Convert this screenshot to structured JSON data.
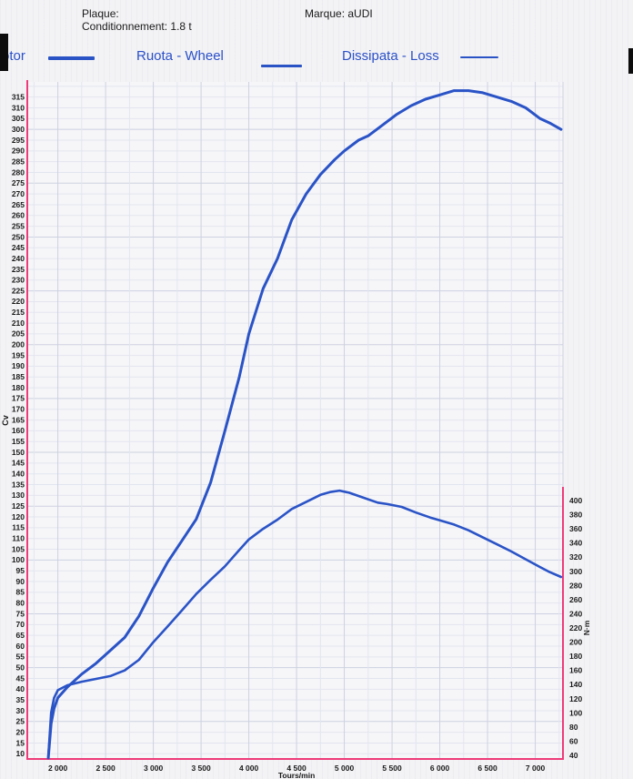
{
  "header": {
    "plaque": "Plaque:",
    "conditionnement": "Conditionnement: 1.8 t",
    "marque": "Marque: aUDI"
  },
  "legend": {
    "motor_label": "otor",
    "wheel_label": "Ruota - Wheel",
    "loss_label": "Dissipata - Loss"
  },
  "colors": {
    "curve_blue": "#2a53c6",
    "axis_magenta": "#ee3a78",
    "grid_minor": "#e3e5ef",
    "grid_major": "#cdd1e0",
    "legend_text": "#2b50c8",
    "text_black": "#1a1a1a",
    "paper": "#f6f6f9"
  },
  "chart_data": {
    "type": "line",
    "title": "",
    "x_axis": {
      "title": "Tours/min",
      "min": 1680,
      "max": 7290,
      "tick_values": [
        2000,
        2500,
        3000,
        3500,
        4000,
        4500,
        5000,
        5500,
        6000,
        6500,
        7000
      ],
      "tick_labels": [
        "2 000",
        "2 500",
        "3 000",
        "3 500",
        "4 000",
        "4 500",
        "5 000",
        "5 500",
        "6 000",
        "6 500",
        "7 000"
      ],
      "minor_step": 250
    },
    "left_axis": {
      "title": "Cv",
      "min": 10,
      "max": 315,
      "step": 5,
      "major_step": 25,
      "grid_top_value": 320
    },
    "right_axis": {
      "title": "N·m",
      "min": 40,
      "max": 400,
      "step": 20
    },
    "legend_position": "top",
    "grid": true,
    "series": [
      {
        "name": "power_cv",
        "axis": "left",
        "stroke_width": 3,
        "points": [
          [
            1900,
            8
          ],
          [
            1930,
            24
          ],
          [
            1960,
            31
          ],
          [
            2000,
            36
          ],
          [
            2100,
            41
          ],
          [
            2250,
            47
          ],
          [
            2400,
            52
          ],
          [
            2550,
            58
          ],
          [
            2700,
            64
          ],
          [
            2850,
            74
          ],
          [
            3000,
            87
          ],
          [
            3150,
            99
          ],
          [
            3300,
            109
          ],
          [
            3450,
            119
          ],
          [
            3600,
            136
          ],
          [
            3750,
            160
          ],
          [
            3900,
            185
          ],
          [
            4000,
            205
          ],
          [
            4150,
            226
          ],
          [
            4300,
            240
          ],
          [
            4450,
            258
          ],
          [
            4600,
            270
          ],
          [
            4750,
            279
          ],
          [
            4900,
            286
          ],
          [
            5000,
            290
          ],
          [
            5150,
            295
          ],
          [
            5250,
            297
          ],
          [
            5400,
            302
          ],
          [
            5550,
            307
          ],
          [
            5700,
            311
          ],
          [
            5850,
            314
          ],
          [
            6000,
            316
          ],
          [
            6150,
            318
          ],
          [
            6300,
            318
          ],
          [
            6450,
            317
          ],
          [
            6600,
            315
          ],
          [
            6750,
            313
          ],
          [
            6900,
            310
          ],
          [
            7050,
            305
          ],
          [
            7150,
            303
          ],
          [
            7270,
            300
          ]
        ]
      },
      {
        "name": "torque_nm",
        "axis": "right",
        "stroke_width": 2.6,
        "points": [
          [
            1900,
            38
          ],
          [
            1930,
            100
          ],
          [
            1960,
            121
          ],
          [
            2000,
            132
          ],
          [
            2100,
            139
          ],
          [
            2250,
            144
          ],
          [
            2400,
            148
          ],
          [
            2550,
            152
          ],
          [
            2700,
            160
          ],
          [
            2850,
            175
          ],
          [
            3000,
            200
          ],
          [
            3150,
            222
          ],
          [
            3300,
            245
          ],
          [
            3450,
            268
          ],
          [
            3600,
            288
          ],
          [
            3750,
            307
          ],
          [
            3900,
            330
          ],
          [
            4000,
            345
          ],
          [
            4150,
            360
          ],
          [
            4300,
            373
          ],
          [
            4450,
            388
          ],
          [
            4600,
            398
          ],
          [
            4750,
            408
          ],
          [
            4850,
            412
          ],
          [
            4950,
            414
          ],
          [
            5050,
            411
          ],
          [
            5200,
            404
          ],
          [
            5350,
            397
          ],
          [
            5450,
            395
          ],
          [
            5600,
            391
          ],
          [
            5750,
            383
          ],
          [
            5900,
            376
          ],
          [
            6000,
            372
          ],
          [
            6150,
            366
          ],
          [
            6300,
            358
          ],
          [
            6450,
            348
          ],
          [
            6600,
            338
          ],
          [
            6750,
            328
          ],
          [
            6900,
            317
          ],
          [
            7050,
            306
          ],
          [
            7150,
            299
          ],
          [
            7270,
            292
          ]
        ]
      }
    ]
  }
}
